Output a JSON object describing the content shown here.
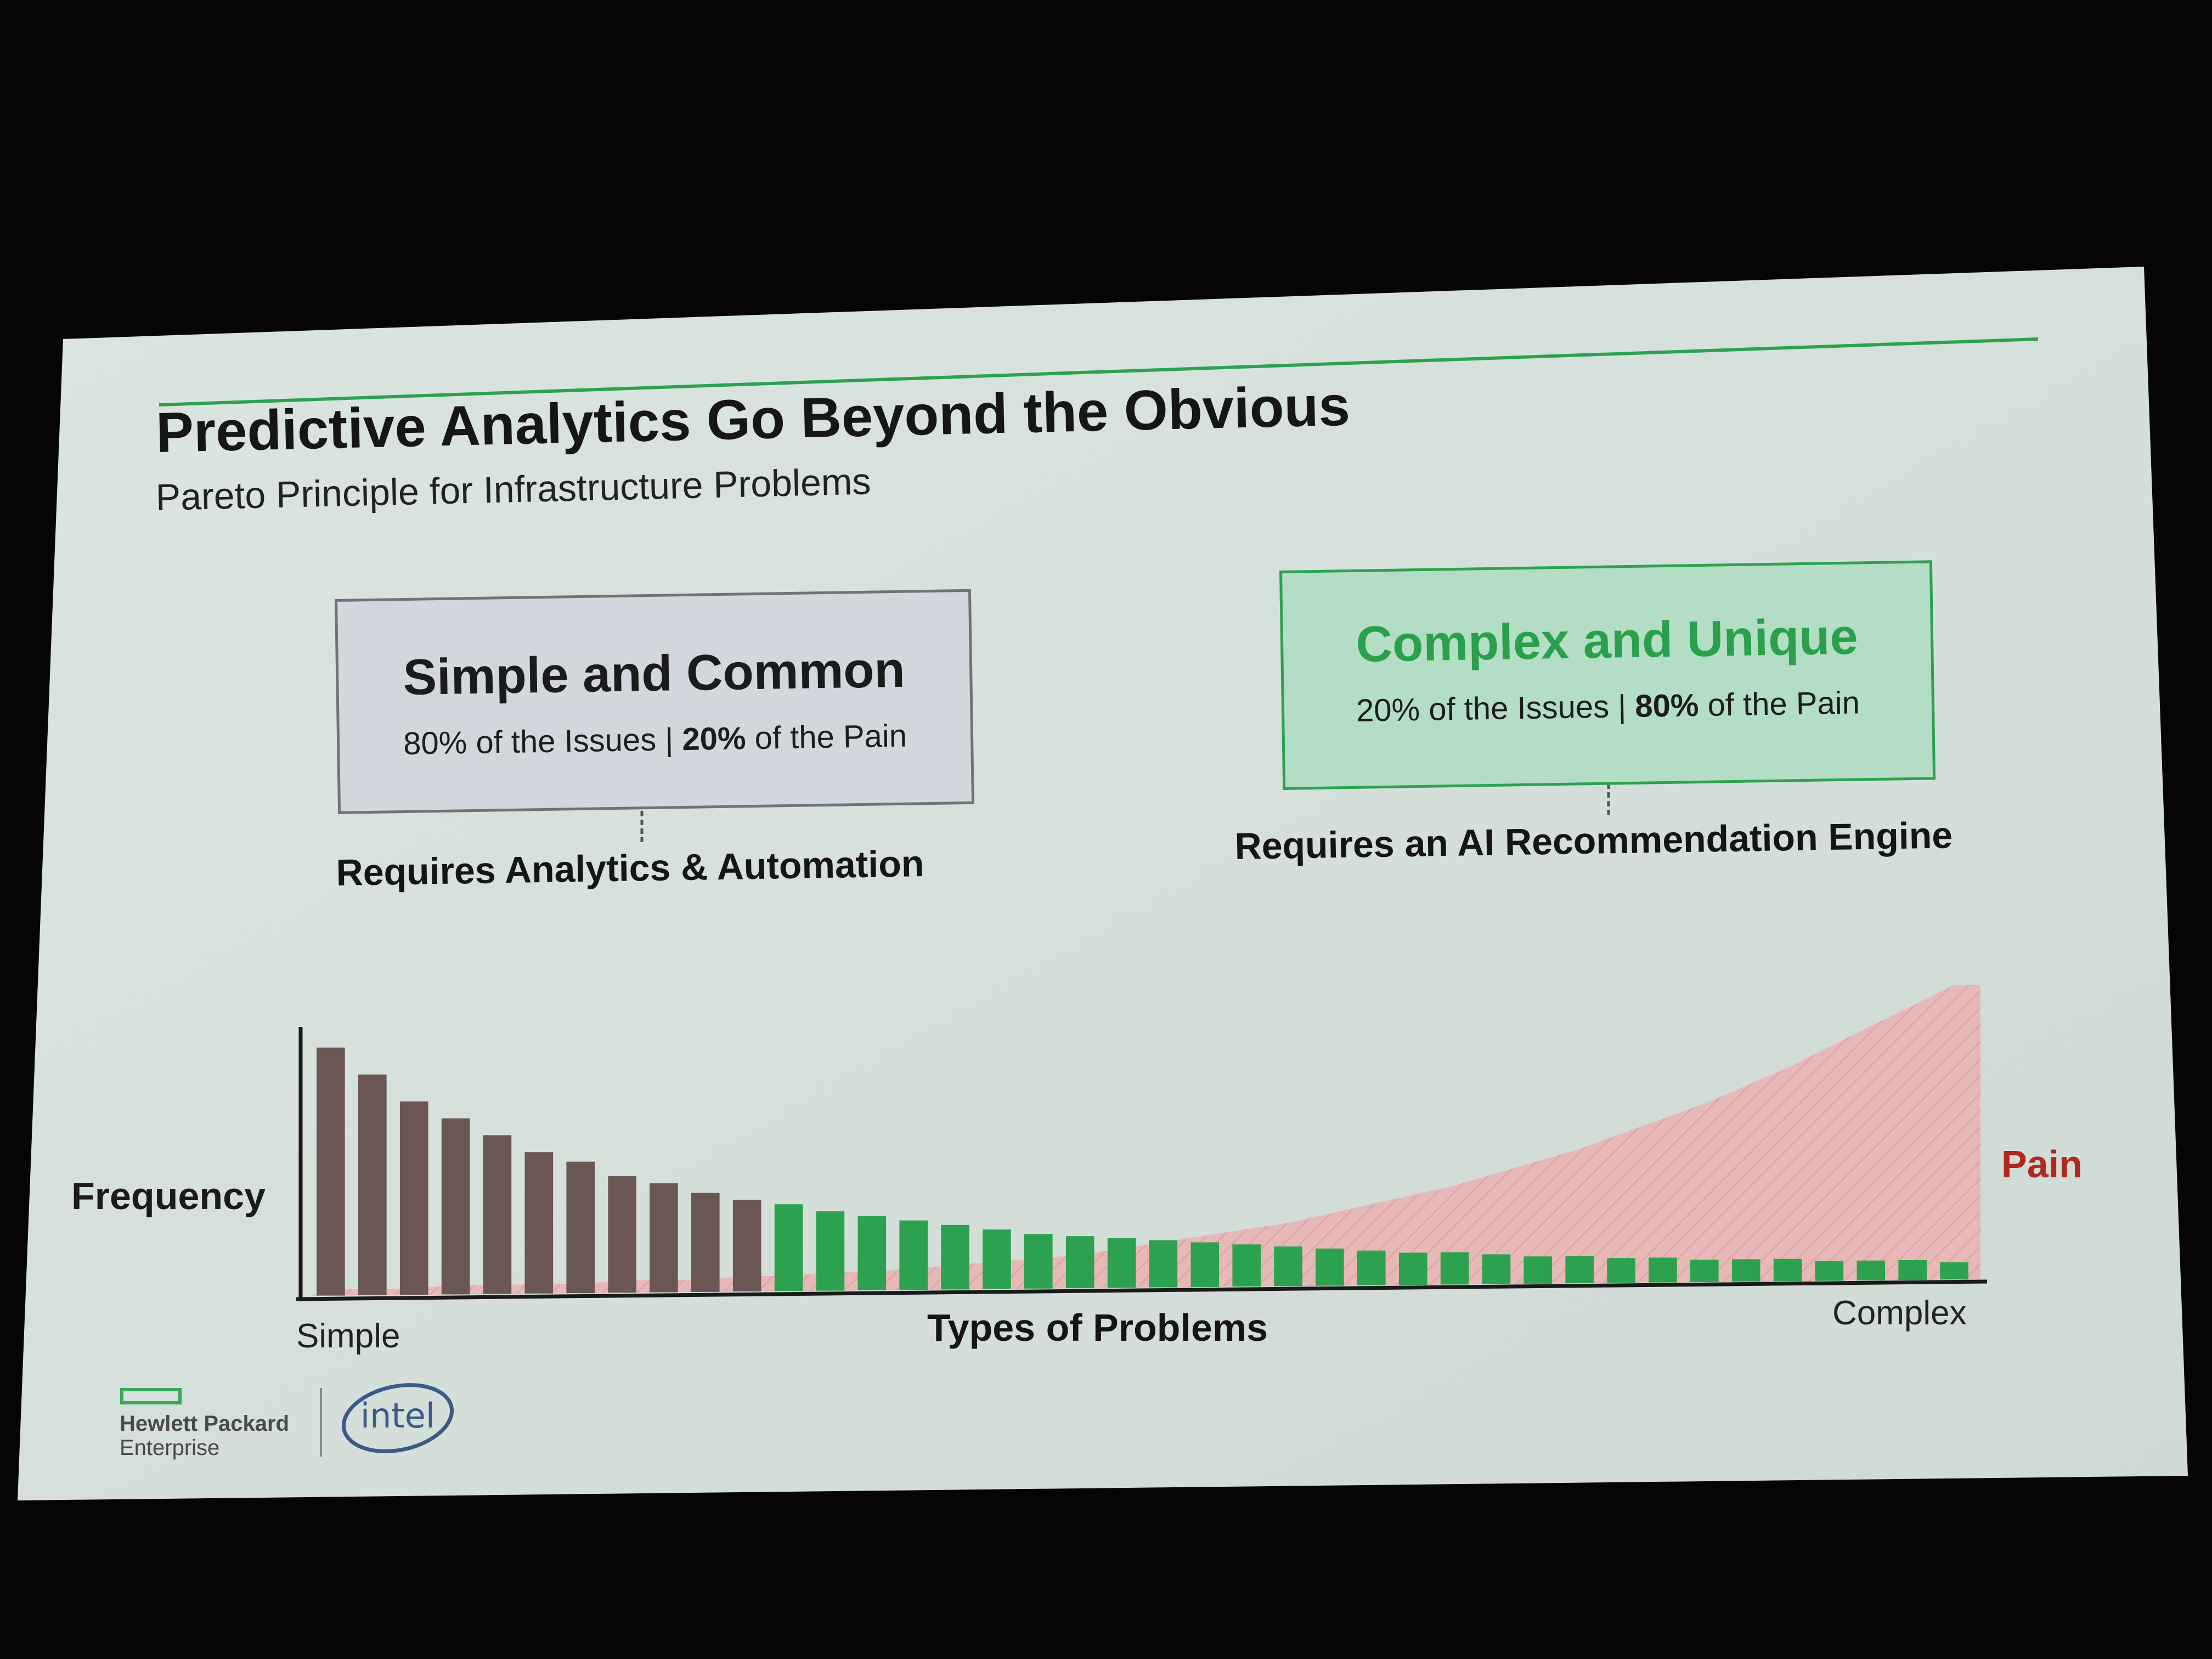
{
  "slide": {
    "title": "Predictive Analytics Go Beyond the Obvious",
    "subtitle": "Pareto Principle for Infrastructure Problems"
  },
  "simple_box": {
    "heading": "Simple and Common",
    "issues_part": "80% of the Issues",
    "separator": " | ",
    "pain_part_bold": "20%",
    "pain_part_rest": " of the Pain",
    "requirement": "Requires Analytics & Automation"
  },
  "complex_box": {
    "heading": "Complex and Unique",
    "issues_part": "20% of the Issues",
    "separator": " | ",
    "pain_part_bold": "80%",
    "pain_part_rest": " of the Pain",
    "requirement": "Requires an AI Recommendation Engine"
  },
  "chart_labels": {
    "y_label": "Frequency",
    "x_label": "Types of Problems",
    "x_start": "Simple",
    "x_end": "Complex",
    "pain": "Pain"
  },
  "logos": {
    "hpe_line1": "Hewlett Packard",
    "hpe_line2": "Enterprise",
    "intel": "intel"
  },
  "colors": {
    "screen_background": "#050505",
    "slide_background": "#d6e1dc",
    "accent_green": "#2ca24e",
    "common_bar_brown": "#6a5652",
    "pain_red": "#b0281e",
    "pain_area_pink": "#e9b3b3"
  },
  "chart_data": {
    "type": "bar",
    "title": "",
    "xlabel": "Types of Problems",
    "ylabel": "Frequency",
    "series": [
      {
        "name": "",
        "values": [
          100,
          89,
          78,
          71,
          64,
          57,
          53,
          47,
          44,
          40,
          37,
          35,
          32,
          30,
          28,
          26,
          24,
          22,
          21,
          20,
          19,
          18,
          17,
          16,
          15,
          14,
          13,
          13,
          12,
          11,
          11,
          10,
          10,
          9,
          9,
          9,
          8,
          8,
          8,
          7
        ],
        "group_split_index": 11
      },
      {
        "name": "Pain",
        "type": "area",
        "values": [
          2,
          2,
          2,
          3,
          3,
          3,
          3,
          4,
          4,
          4,
          5,
          5,
          6,
          6,
          7,
          8,
          9,
          10,
          11,
          13,
          15,
          17,
          19,
          21,
          24,
          27,
          30,
          33,
          37,
          41,
          45,
          50,
          55,
          60,
          66,
          72,
          79,
          86,
          93,
          100
        ]
      }
    ],
    "ylim": [
      0,
      105
    ],
    "grid": false,
    "legend": "none"
  }
}
